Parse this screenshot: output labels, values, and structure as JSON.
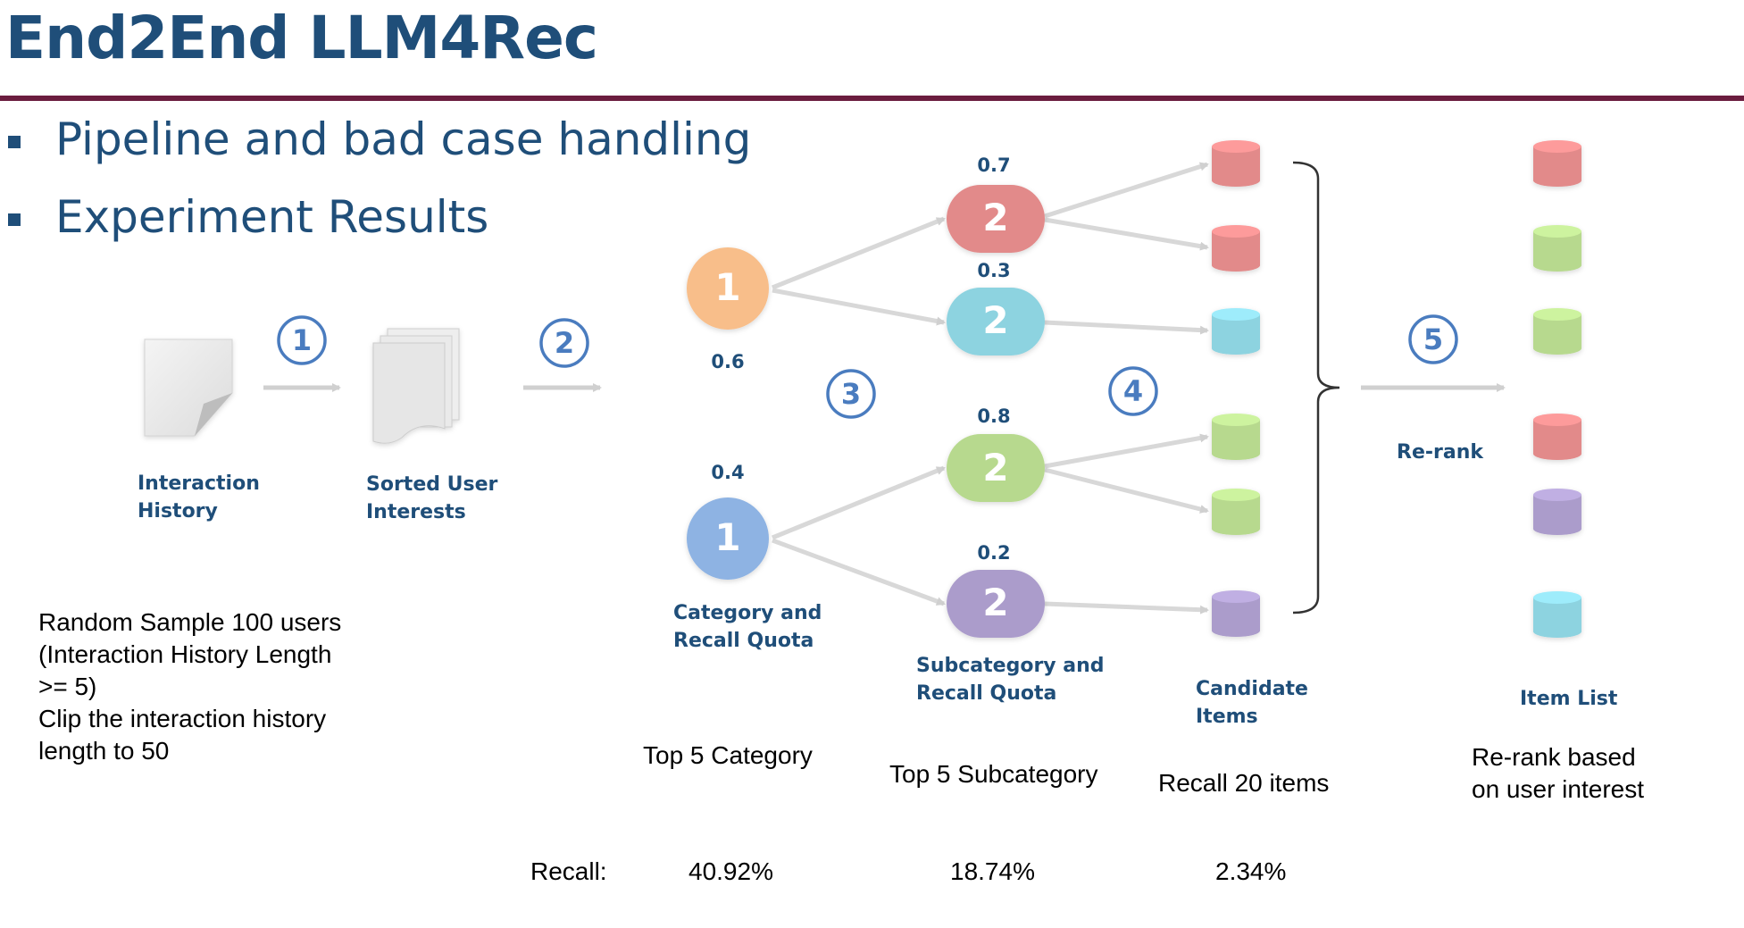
{
  "header": {
    "title": "End2End LLM4Rec"
  },
  "bullets": [
    "Pipeline and bad case handling",
    "Experiment Results"
  ],
  "steps": [
    "1",
    "2",
    "3",
    "4",
    "5"
  ],
  "stages": {
    "interaction_history": "Interaction\nHistory",
    "sorted_interests": "Sorted User\nInterests",
    "category_quota": "Category and\nRecall Quota",
    "subcategory_quota": "Subcategory and\nRecall Quota",
    "candidate_items": "Candidate\nItems",
    "rerank": "Re-rank",
    "item_list": "Item List"
  },
  "category_nodes": [
    {
      "label": "1",
      "quota": "0.6",
      "color": "#f8be8a"
    },
    {
      "label": "1",
      "quota": "0.4",
      "color": "#8eb3e3"
    }
  ],
  "subcategory_nodes": [
    {
      "label": "2",
      "quota": "0.7",
      "color": "#e28a8a"
    },
    {
      "label": "2",
      "quota": "0.3",
      "color": "#8dd3e0"
    },
    {
      "label": "2",
      "quota": "0.8",
      "color": "#b7d98e"
    },
    {
      "label": "2",
      "quota": "0.2",
      "color": "#ab9ccb"
    }
  ],
  "candidate_colors": [
    "#e28a8a",
    "#e28a8a",
    "#8dd3e0",
    "#b7d98e",
    "#b7d98e",
    "#ab9ccb"
  ],
  "item_list_colors": [
    "#e28a8a",
    "#b7d98e",
    "#b7d98e",
    "#e28a8a",
    "#ab9ccb",
    "#8dd3e0"
  ],
  "notes": {
    "sample": "Random Sample 100 users\n(Interaction History Length\n>= 5)\nClip the interaction history\nlength to 50",
    "top_category": "Top 5 Category",
    "top_subcategory": "Top 5 Subcategory",
    "recall_items": "Recall 20 items",
    "rerank_basis": "Re-rank based\non user interest"
  },
  "recall": {
    "label": "Recall:",
    "category": "40.92%",
    "subcategory": "18.74%",
    "items": "2.34%"
  }
}
